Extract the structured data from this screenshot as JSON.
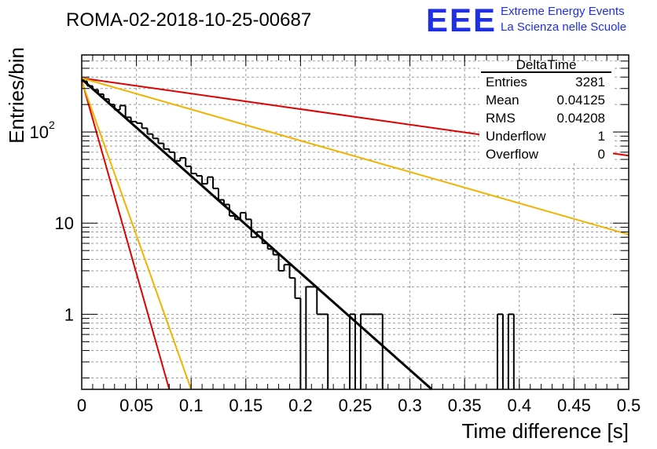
{
  "header": {
    "run_title": "ROMA-02-2018-10-25-00687",
    "logo_text": "EEE",
    "logo_line1": "Extreme Energy Events",
    "logo_line2": "La Scienza nelle Scuole"
  },
  "stats": {
    "title": "DeltaTime",
    "rows": [
      {
        "label": "Entries",
        "value": "3281"
      },
      {
        "label": "Mean",
        "value": "0.04125"
      },
      {
        "label": "RMS",
        "value": "0.04208"
      },
      {
        "label": "Underflow",
        "value": "1"
      },
      {
        "label": "Overflow",
        "value": "0"
      }
    ]
  },
  "colors": {
    "logo": "#1f2fe6",
    "histogram": "#000000",
    "fit": "#000000",
    "red_curve": "#e00000",
    "yellow_curve": "#f0b400",
    "grid": "#999999"
  },
  "chart_data": {
    "type": "line",
    "xlabel": "Time difference [s]",
    "ylabel": "Entries/bin",
    "xlim": [
      0,
      0.5
    ],
    "ylim": [
      0.15,
      700
    ],
    "yscale": "log",
    "grid": true,
    "x_ticks": [
      "0",
      "0.05",
      "0.1",
      "0.15",
      "0.2",
      "0.25",
      "0.3",
      "0.35",
      "0.4",
      "0.45",
      "0.5"
    ],
    "y_ticks": [
      {
        "value": 1,
        "base": "1",
        "exp": ""
      },
      {
        "value": 10,
        "base": "10",
        "exp": ""
      },
      {
        "value": 100,
        "base": "10",
        "exp": "2"
      }
    ],
    "histogram": {
      "bin_width": 0.005,
      "bin_start": 0,
      "counts": [
        360,
        320,
        290,
        260,
        230,
        200,
        175,
        195,
        145,
        130,
        125,
        110,
        95,
        85,
        75,
        65,
        60,
        48,
        52,
        42,
        35,
        33,
        27,
        32,
        24,
        18,
        16,
        12,
        11,
        13,
        11,
        7,
        8,
        6,
        5.2,
        4.5,
        3,
        3.5,
        2.5,
        1.5,
        0,
        2,
        2,
        1,
        1,
        0,
        0,
        0,
        0,
        1,
        0,
        1,
        1,
        1,
        1,
        0,
        0,
        0,
        0,
        0,
        0,
        0,
        0,
        0,
        0,
        0,
        0,
        0,
        0,
        0,
        0,
        0,
        0,
        0,
        0,
        0,
        1,
        0,
        1,
        0
      ]
    },
    "series": [
      {
        "points": [
          [
            0,
            380
          ],
          [
            0.32,
            0.15
          ]
        ]
      },
      {
        "points": [
          [
            0,
            390
          ],
          [
            0.5,
            55
          ]
        ]
      },
      {
        "points": [
          [
            0,
            390
          ],
          [
            0.5,
            7.5
          ]
        ]
      },
      {
        "points": [
          [
            0,
            370
          ],
          [
            0.08,
            0.15
          ]
        ]
      },
      {
        "points": [
          [
            0,
            360
          ],
          [
            0.1,
            0.15
          ]
        ]
      }
    ]
  }
}
